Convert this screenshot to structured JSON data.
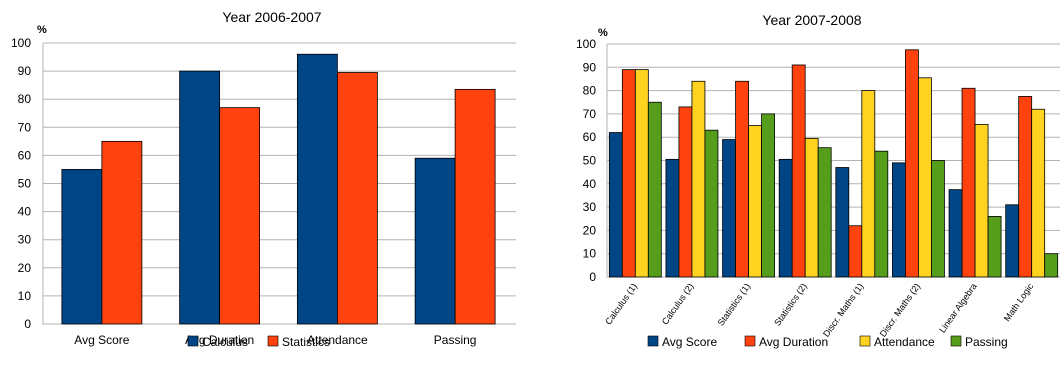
{
  "chart_data": [
    {
      "type": "bar",
      "title": "Year 2006-2007",
      "unit_label": "%",
      "ylim": [
        0,
        100
      ],
      "yticks": [
        0,
        10,
        20,
        30,
        40,
        50,
        60,
        70,
        80,
        90,
        100
      ],
      "grid": true,
      "legend_position": "bottom",
      "categories": [
        "Avg Score",
        "Avg Duration",
        "Attendance",
        "Passing"
      ],
      "series": [
        {
          "name": "Calculus",
          "color": "#004586",
          "values": [
            55,
            90,
            96,
            59
          ]
        },
        {
          "name": "Statistics",
          "color": "#ff420e",
          "values": [
            65,
            77,
            89.5,
            83.5
          ]
        }
      ]
    },
    {
      "type": "bar",
      "title": "Year 2007-2008",
      "unit_label": "%",
      "ylim": [
        0,
        100
      ],
      "yticks": [
        0,
        10,
        20,
        30,
        40,
        50,
        60,
        70,
        80,
        90,
        100
      ],
      "grid": true,
      "legend_position": "bottom",
      "categories": [
        "Calculus (1)",
        "Calculus (2)",
        "Statistics (1)",
        "Statistics (2)",
        "Discr. Maths (1)",
        "Discr. Maths (2)",
        "Linear Algebra",
        "Math Logic"
      ],
      "series": [
        {
          "name": "Avg Score",
          "color": "#004586",
          "values": [
            62,
            50.5,
            59,
            50.5,
            47,
            49,
            37.5,
            31
          ]
        },
        {
          "name": "Avg Duration",
          "color": "#ff420e",
          "values": [
            89,
            73,
            84,
            91,
            22,
            97.5,
            81,
            77.5
          ]
        },
        {
          "name": "Attendance",
          "color": "#ffd320",
          "values": [
            89,
            84,
            65,
            59.5,
            80,
            85.5,
            65.5,
            72
          ]
        },
        {
          "name": "Passing",
          "color": "#579d1c",
          "values": [
            75,
            63,
            70,
            55.5,
            54,
            50,
            26,
            10
          ]
        }
      ]
    }
  ]
}
